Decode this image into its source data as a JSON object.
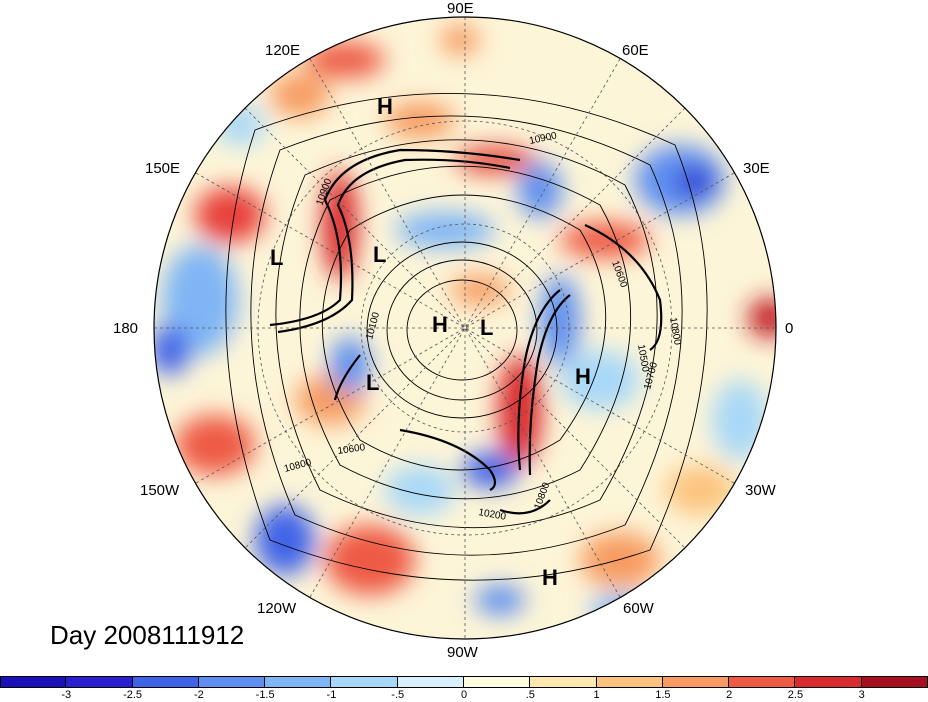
{
  "longitude_labels": {
    "e90": "90E",
    "e120": "120E",
    "e60": "60E",
    "e150": "150E",
    "e30": "30E",
    "w180": "180",
    "zero": "0",
    "w150": "150W",
    "w30": "30W",
    "w120": "120W",
    "w60": "60W",
    "w90": "90W"
  },
  "pressure_centers": [
    "H",
    "L",
    "H",
    "L",
    "H",
    "L",
    "H",
    "H"
  ],
  "contour_labels": [
    "10900",
    "10900",
    "10800",
    "10500",
    "10700",
    "10600",
    "10800",
    "10100",
    "10200",
    "10600",
    "10800"
  ],
  "title": "Day 2008111912",
  "colorbar": {
    "ticks": [
      "-3",
      "-2.5",
      "-2",
      "-1.5",
      "-1",
      "-.5",
      "0",
      ".5",
      "1",
      "1.5",
      "2",
      "2.5",
      "3"
    ],
    "colors": [
      "#2a1fd0",
      "#3f63e8",
      "#5e8ff0",
      "#7fb5f5",
      "#a8d8f8",
      "#d8f0fb",
      "#fffbe0",
      "#fde8b0",
      "#fcc47e",
      "#f79b62",
      "#ee5a44",
      "#d92b2f",
      "#a50f1f"
    ]
  }
}
